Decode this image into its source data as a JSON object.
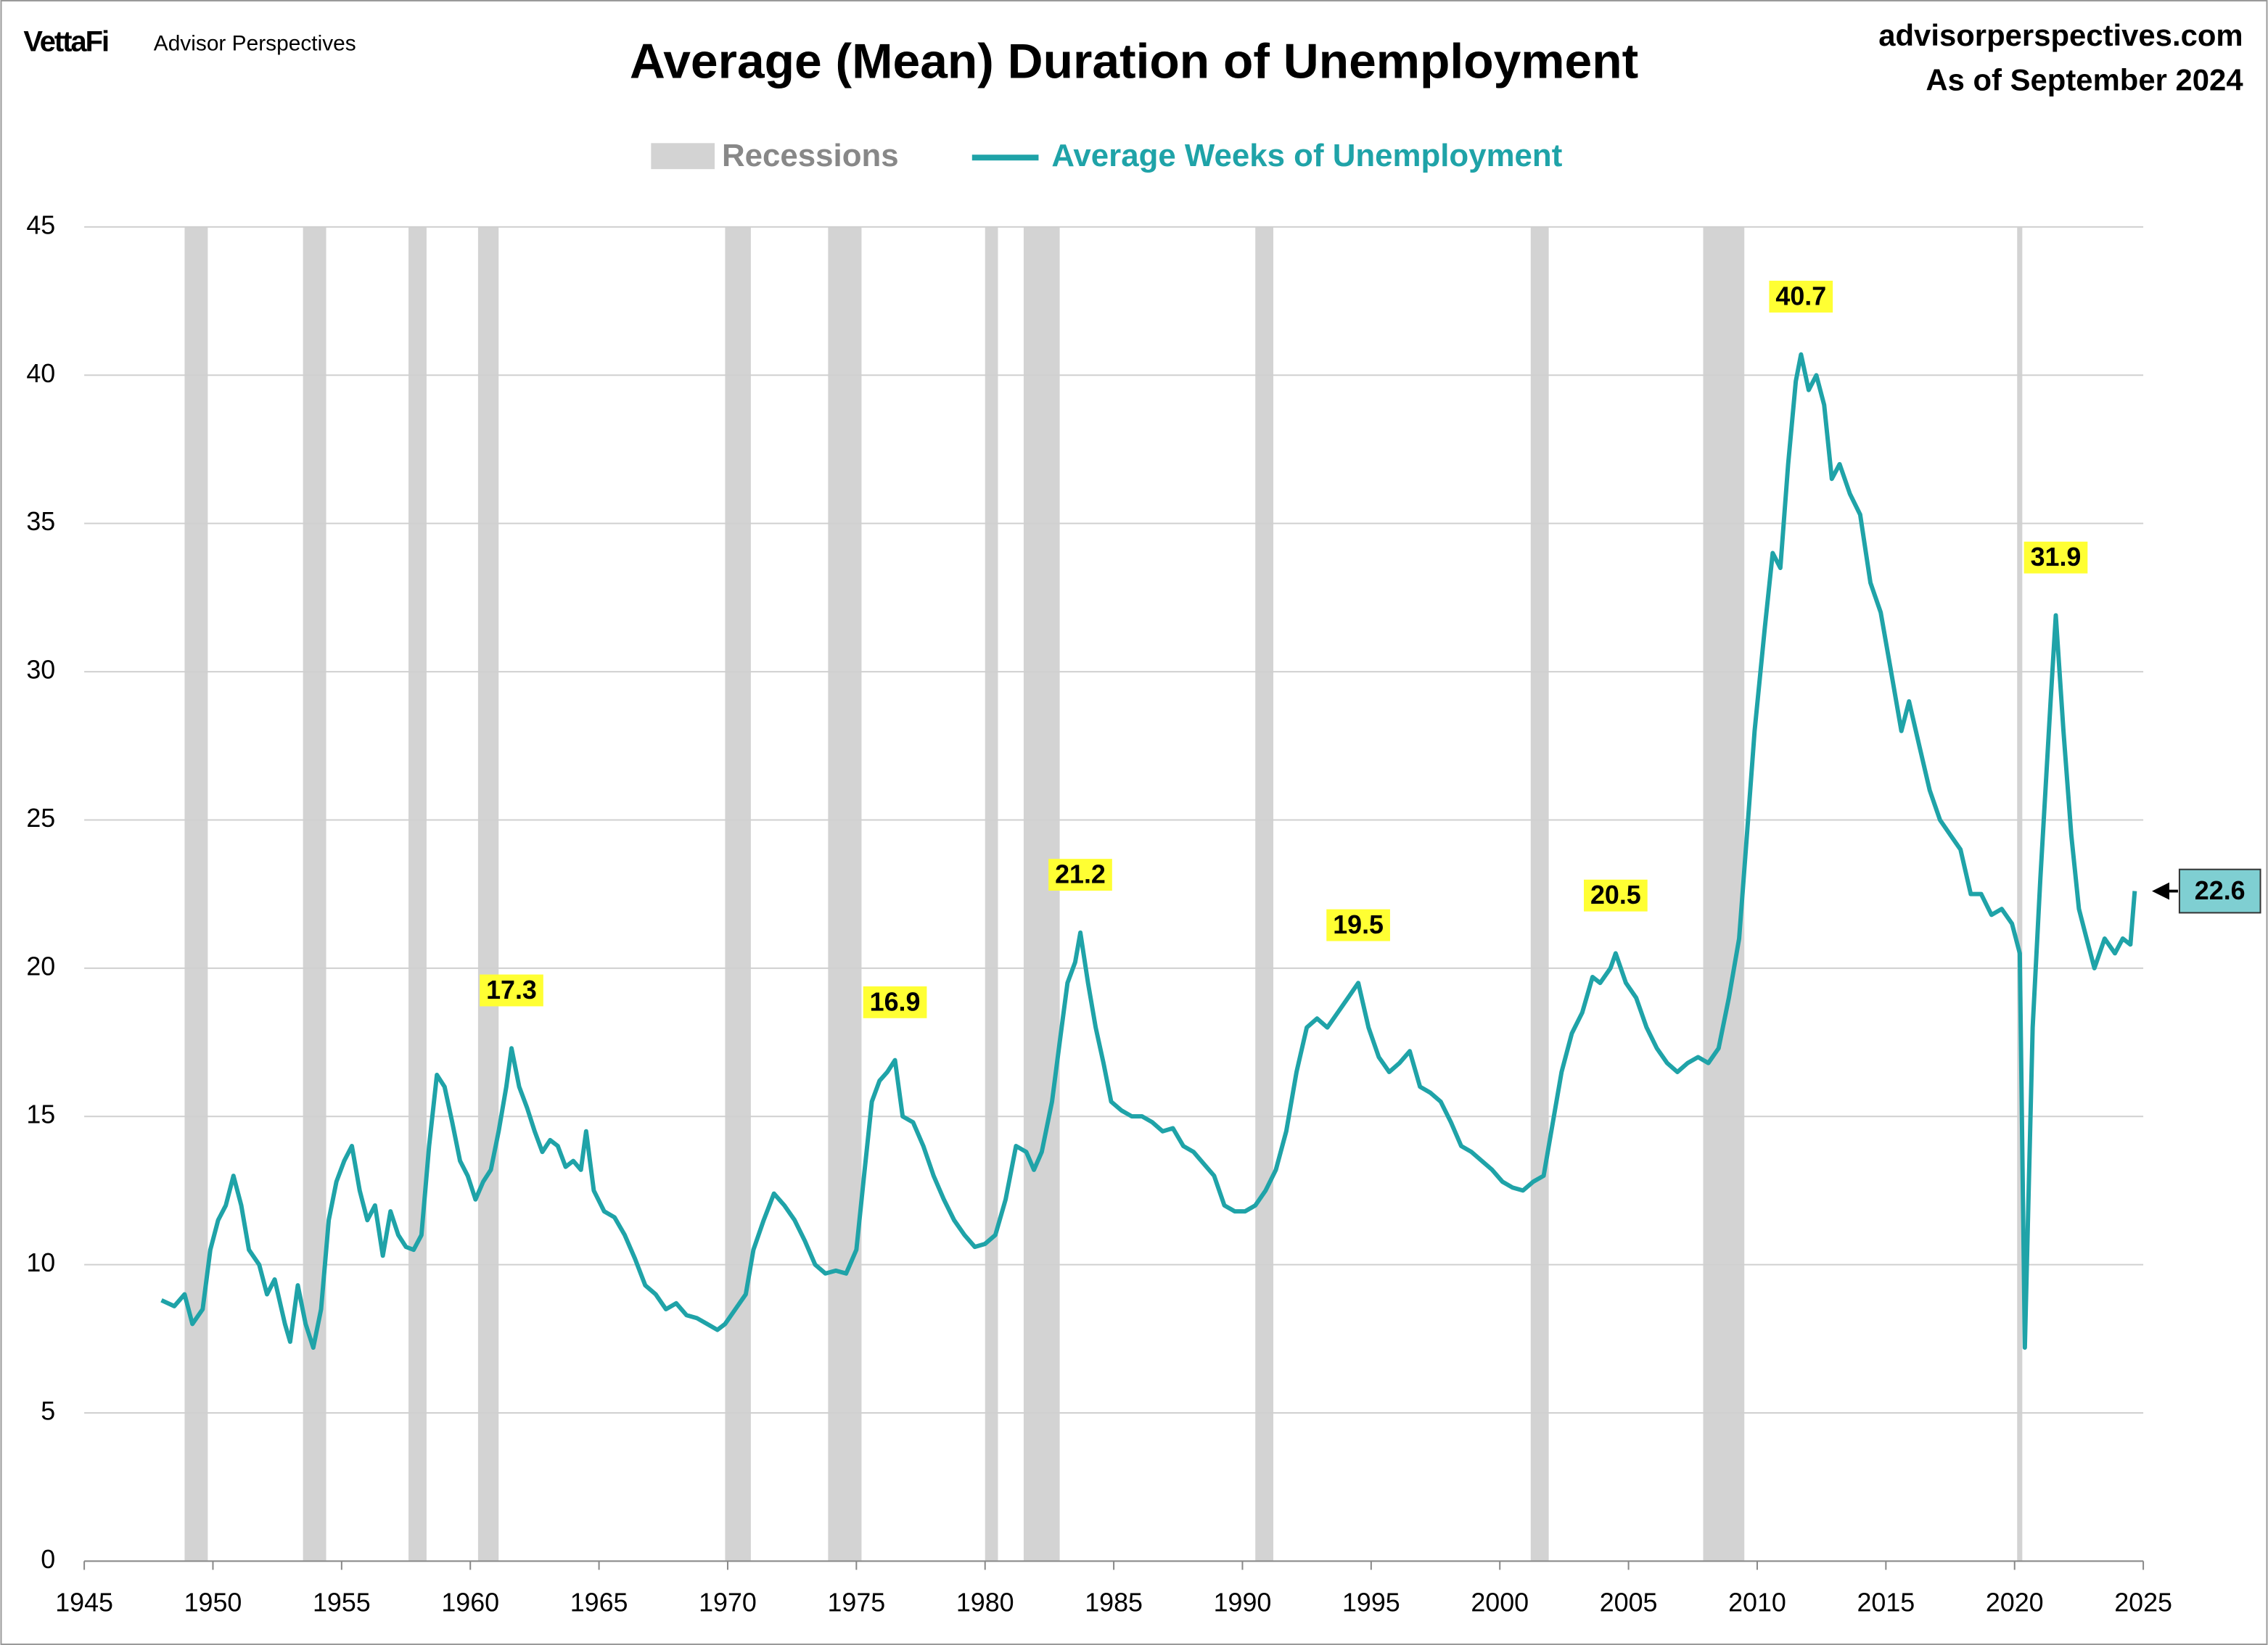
{
  "chart_data": {
    "type": "line",
    "brand": "VettaFi",
    "brand_sub": "Advisor Perspectives",
    "title": "Average (Mean) Duration of Unemployment",
    "source": "advisorperspectives.com",
    "asof": "As of September 2024",
    "recession_label": "Recessions",
    "recession_color": "#d3d3d3",
    "recessions": [
      [
        1948.9,
        1949.8
      ],
      [
        1953.5,
        1954.4
      ],
      [
        1957.6,
        1958.3
      ],
      [
        1960.3,
        1961.1
      ],
      [
        1969.9,
        1970.9
      ],
      [
        1973.9,
        1975.2
      ],
      [
        1980.0,
        1980.5
      ],
      [
        1981.5,
        1982.9
      ],
      [
        1990.5,
        1991.2
      ],
      [
        2001.2,
        2001.9
      ],
      [
        2007.9,
        2009.5
      ],
      [
        2020.1,
        2020.3
      ]
    ],
    "xlim": [
      1945,
      2025
    ],
    "xticks": [
      1945,
      1950,
      1955,
      1960,
      1965,
      1970,
      1975,
      1980,
      1985,
      1990,
      1995,
      2000,
      2005,
      2010,
      2015,
      2020,
      2025
    ],
    "ylim": [
      0,
      45
    ],
    "yticks": [
      0,
      5,
      10,
      15,
      20,
      25,
      30,
      35,
      40,
      45
    ],
    "grid": true,
    "x": [
      1948.0,
      1948.5,
      1948.9,
      1949.2,
      1949.6,
      1949.9,
      1950.2,
      1950.5,
      1950.8,
      1951.1,
      1951.4,
      1951.8,
      1952.1,
      1952.4,
      1952.8,
      1953.0,
      1953.3,
      1953.6,
      1953.9,
      1954.2,
      1954.5,
      1954.8,
      1955.1,
      1955.4,
      1955.7,
      1956.0,
      1956.3,
      1956.6,
      1956.9,
      1957.2,
      1957.5,
      1957.8,
      1958.1,
      1958.4,
      1958.7,
      1959.0,
      1959.3,
      1959.6,
      1959.9,
      1960.2,
      1960.5,
      1960.8,
      1961.1,
      1961.4,
      1961.6,
      1961.9,
      1962.2,
      1962.5,
      1962.8,
      1963.1,
      1963.4,
      1963.7,
      1964.0,
      1964.3,
      1964.5,
      1964.8,
      1965.2,
      1965.6,
      1966.0,
      1966.4,
      1966.8,
      1967.2,
      1967.6,
      1968.0,
      1968.4,
      1968.8,
      1969.2,
      1969.6,
      1969.9,
      1970.3,
      1970.7,
      1971.0,
      1971.4,
      1971.8,
      1972.2,
      1972.6,
      1973.0,
      1973.4,
      1973.8,
      1974.2,
      1974.6,
      1975.0,
      1975.3,
      1975.6,
      1975.9,
      1976.2,
      1976.5,
      1976.8,
      1977.2,
      1977.6,
      1978.0,
      1978.4,
      1978.8,
      1979.2,
      1979.6,
      1980.0,
      1980.4,
      1980.8,
      1981.2,
      1981.6,
      1981.9,
      1982.2,
      1982.6,
      1982.9,
      1983.2,
      1983.5,
      1983.7,
      1984.0,
      1984.3,
      1984.6,
      1984.9,
      1985.3,
      1985.7,
      1986.1,
      1986.5,
      1986.9,
      1987.3,
      1987.7,
      1988.1,
      1988.5,
      1988.9,
      1989.3,
      1989.7,
      1990.1,
      1990.5,
      1990.9,
      1991.3,
      1991.7,
      1992.1,
      1992.5,
      1992.9,
      1993.3,
      1993.7,
      1994.1,
      1994.5,
      1994.9,
      1995.3,
      1995.7,
      1996.1,
      1996.5,
      1996.9,
      1997.3,
      1997.7,
      1998.1,
      1998.5,
      1998.9,
      1999.3,
      1999.7,
      2000.1,
      2000.5,
      2000.9,
      2001.3,
      2001.7,
      2002.0,
      2002.4,
      2002.8,
      2003.2,
      2003.6,
      2003.9,
      2004.3,
      2004.5,
      2004.9,
      2005.3,
      2005.7,
      2006.1,
      2006.5,
      2006.9,
      2007.3,
      2007.7,
      2008.1,
      2008.5,
      2008.9,
      2009.3,
      2009.6,
      2009.9,
      2010.3,
      2010.6,
      2010.9,
      2011.2,
      2011.5,
      2011.7,
      2012.0,
      2012.3,
      2012.6,
      2012.9,
      2013.2,
      2013.6,
      2014.0,
      2014.4,
      2014.8,
      2015.2,
      2015.6,
      2015.9,
      2016.3,
      2016.7,
      2017.1,
      2017.5,
      2017.9,
      2018.3,
      2018.7,
      2019.1,
      2019.5,
      2019.9,
      2020.2,
      2020.4,
      2020.7,
      2021.0,
      2021.4,
      2021.6,
      2021.9,
      2022.2,
      2022.5,
      2022.8,
      2023.1,
      2023.5,
      2023.9,
      2024.2,
      2024.5,
      2024.67
    ],
    "series": [
      {
        "name": "Average Weeks of Unemployment",
        "color": "#1fa3a8",
        "values": [
          8.8,
          8.6,
          9.0,
          8.0,
          8.5,
          10.5,
          11.5,
          12.0,
          13.0,
          12.0,
          10.5,
          10.0,
          9.0,
          9.5,
          8.0,
          7.4,
          9.3,
          8.0,
          7.2,
          8.5,
          11.5,
          12.8,
          13.5,
          14.0,
          12.5,
          11.5,
          12.0,
          10.3,
          11.8,
          11.0,
          10.6,
          10.5,
          11.0,
          14.0,
          16.4,
          16.0,
          14.8,
          13.5,
          13.0,
          12.2,
          12.8,
          13.2,
          14.5,
          16.0,
          17.3,
          16.0,
          15.3,
          14.5,
          13.8,
          14.2,
          14.0,
          13.3,
          13.5,
          13.2,
          14.5,
          12.5,
          11.8,
          11.6,
          11.0,
          10.2,
          9.3,
          9.0,
          8.5,
          8.7,
          8.3,
          8.2,
          8.0,
          7.8,
          8.0,
          8.5,
          9.0,
          10.5,
          11.5,
          12.4,
          12.0,
          11.5,
          10.8,
          10.0,
          9.7,
          9.8,
          9.7,
          10.5,
          13.0,
          15.5,
          16.2,
          16.5,
          16.9,
          15.0,
          14.8,
          14.0,
          13.0,
          12.2,
          11.5,
          11.0,
          10.6,
          10.7,
          11.0,
          12.2,
          14.0,
          13.8,
          13.2,
          13.8,
          15.5,
          17.5,
          19.5,
          20.2,
          21.2,
          19.5,
          18.0,
          16.8,
          15.5,
          15.2,
          15.0,
          15.0,
          14.8,
          14.5,
          14.6,
          14.0,
          13.8,
          13.4,
          13.0,
          12.0,
          11.8,
          11.8,
          12.0,
          12.5,
          13.2,
          14.5,
          16.5,
          18.0,
          18.3,
          18.0,
          18.5,
          19.0,
          19.5,
          18.0,
          17.0,
          16.5,
          16.8,
          17.2,
          16.0,
          15.8,
          15.5,
          14.8,
          14.0,
          13.8,
          13.5,
          13.2,
          12.8,
          12.6,
          12.5,
          12.8,
          13.0,
          14.5,
          16.5,
          17.8,
          18.5,
          19.7,
          19.5,
          20.0,
          20.5,
          19.5,
          19.0,
          18.0,
          17.3,
          16.8,
          16.5,
          16.8,
          17.0,
          16.8,
          17.3,
          19.0,
          21.0,
          24.5,
          28.0,
          31.5,
          34.0,
          33.5,
          37.0,
          39.8,
          40.7,
          39.5,
          40.0,
          39.0,
          36.5,
          37.0,
          36.0,
          35.3,
          33.0,
          32.0,
          30.0,
          28.0,
          29.0,
          27.5,
          26.0,
          25.0,
          24.5,
          24.0,
          22.5,
          22.5,
          21.8,
          22.0,
          21.5,
          20.5,
          7.2,
          18.0,
          23.0,
          29.0,
          31.9,
          28.0,
          24.5,
          22.0,
          21.0,
          20.0,
          21.0,
          20.5,
          21.0,
          20.8,
          22.6
        ]
      }
    ],
    "annotations": [
      {
        "x": 1961.6,
        "value": 17.3
      },
      {
        "x": 1976.5,
        "value": 16.9
      },
      {
        "x": 1983.7,
        "value": 21.2
      },
      {
        "x": 1994.5,
        "value": 19.5
      },
      {
        "x": 2004.5,
        "value": 20.5
      },
      {
        "x": 2011.7,
        "value": 40.7
      },
      {
        "x": 2021.6,
        "value": 31.9
      }
    ]
  }
}
